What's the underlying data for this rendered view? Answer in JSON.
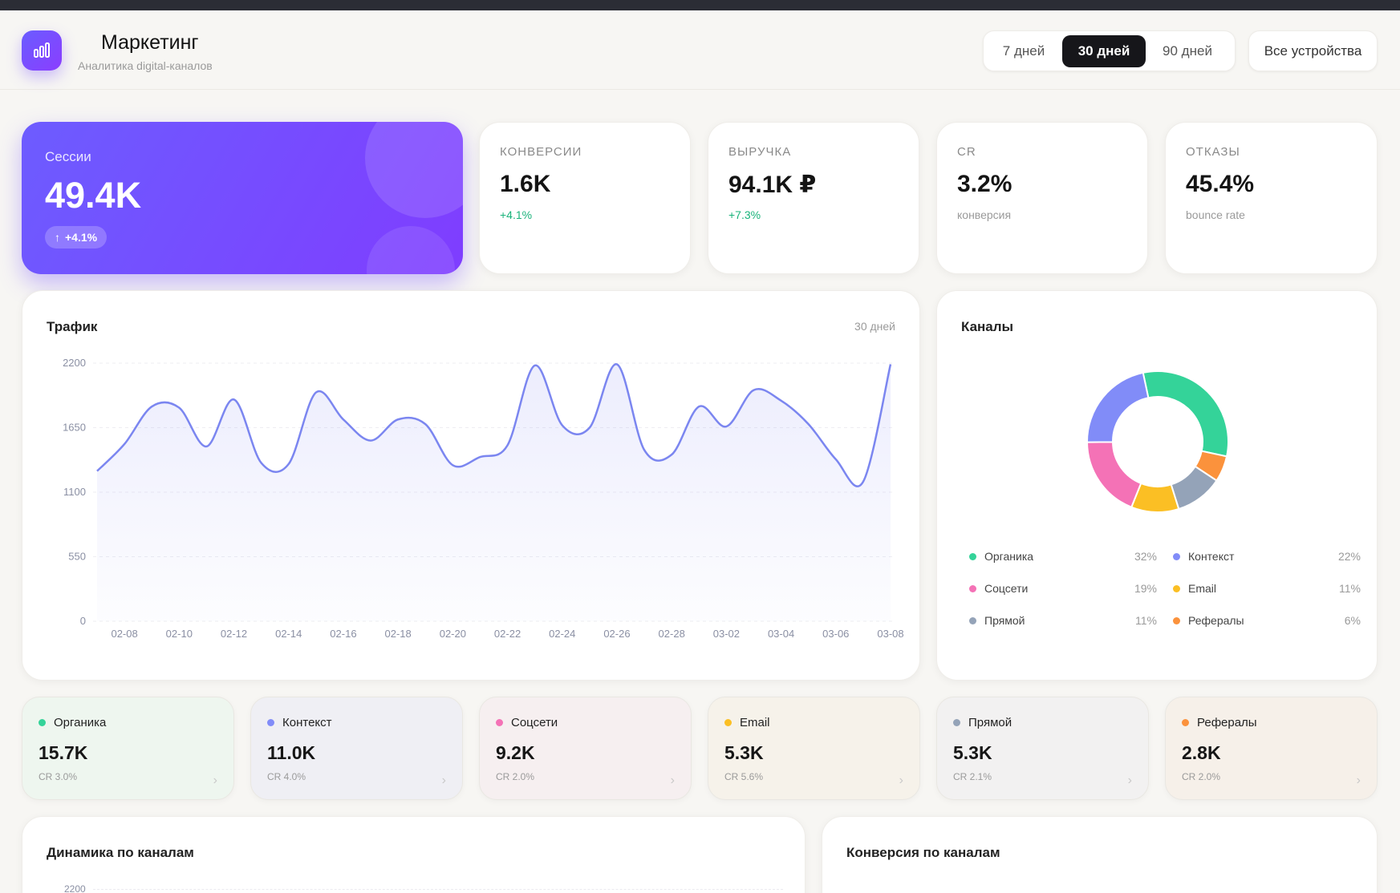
{
  "app": {
    "title": "Маркетинг",
    "subtitle": "Аналитика digital-каналов"
  },
  "periods": [
    {
      "label": "7 дней",
      "active": false
    },
    {
      "label": "30 дней",
      "active": true
    },
    {
      "label": "90 дней",
      "active": false
    }
  ],
  "device_filter": "Все устройства",
  "hero": {
    "label": "Сессии",
    "value": "49.4K",
    "delta": "+4.1%",
    "delta_icon": "arrow-up-icon"
  },
  "kpis": [
    {
      "label": "Конверсии",
      "value": "1.6K",
      "sub": "+4.1%",
      "positive": true
    },
    {
      "label": "Выручка",
      "value": "94.1K ₽",
      "sub": "+7.3%",
      "positive": true
    },
    {
      "label": "CR",
      "value": "3.2%",
      "sub": "конверсия",
      "positive": false
    },
    {
      "label": "Отказы",
      "value": "45.4%",
      "sub": "bounce rate",
      "positive": false
    }
  ],
  "traffic": {
    "title": "Трафик",
    "period": "30 дней",
    "color": "#7b86f0"
  },
  "channels_panel": {
    "title": "Каналы"
  },
  "legend": [
    {
      "name": "Органика",
      "pct": "32%",
      "color": "#34d399"
    },
    {
      "name": "Контекст",
      "pct": "22%",
      "color": "#818cf8"
    },
    {
      "name": "Соцсети",
      "pct": "19%",
      "color": "#f472b6"
    },
    {
      "name": "Email",
      "pct": "11%",
      "color": "#fbbf24"
    },
    {
      "name": "Прямой",
      "pct": "11%",
      "color": "#94a3b8"
    },
    {
      "name": "Рефералы",
      "pct": "6%",
      "color": "#fb923c"
    }
  ],
  "channel_cards": [
    {
      "name": "Органика",
      "value": "15.7K",
      "cr": "CR 3.0%",
      "color": "#34d399",
      "bg": "#eef6ef"
    },
    {
      "name": "Контекст",
      "value": "11.0K",
      "cr": "CR 4.0%",
      "color": "#818cf8",
      "bg": "#efeff4"
    },
    {
      "name": "Соцсети",
      "value": "9.2K",
      "cr": "CR 2.0%",
      "color": "#f472b6",
      "bg": "#f6eff0"
    },
    {
      "name": "Email",
      "value": "5.3K",
      "cr": "CR 5.6%",
      "color": "#fbbf24",
      "bg": "#f6f2ea"
    },
    {
      "name": "Прямой",
      "value": "5.3K",
      "cr": "CR 2.1%",
      "color": "#94a3b8",
      "bg": "#f2f1f1"
    },
    {
      "name": "Рефералы",
      "value": "2.8K",
      "cr": "CR 2.0%",
      "color": "#fb923c",
      "bg": "#f6f0e9"
    }
  ],
  "bottom": {
    "dynamics_title": "Динамика по каналам",
    "dynamics_tick": "2200",
    "conversion_title": "Конверсия по каналам"
  },
  "chart_data": [
    {
      "type": "area",
      "title": "Трафик",
      "xlabel": "",
      "ylabel": "",
      "ylim": [
        0,
        2200
      ],
      "yticks": [
        0,
        550,
        1100,
        1650,
        2200
      ],
      "xticks": [
        "02-08",
        "02-10",
        "02-12",
        "02-14",
        "02-16",
        "02-18",
        "02-20",
        "02-22",
        "02-24",
        "02-26",
        "02-28",
        "03-02",
        "03-04",
        "03-06",
        "03-08"
      ],
      "x": [
        "02-07",
        "02-08",
        "02-09",
        "02-10",
        "02-11",
        "02-12",
        "02-13",
        "02-14",
        "02-15",
        "02-16",
        "02-17",
        "02-18",
        "02-19",
        "02-20",
        "02-21",
        "02-22",
        "02-23",
        "02-24",
        "02-25",
        "02-26",
        "02-27",
        "02-28",
        "03-01",
        "03-02",
        "03-03",
        "03-04",
        "03-05",
        "03-06",
        "03-07",
        "03-08"
      ],
      "values": [
        1280,
        1510,
        1830,
        1820,
        1490,
        1890,
        1350,
        1340,
        1950,
        1720,
        1540,
        1720,
        1680,
        1330,
        1400,
        1500,
        2180,
        1670,
        1650,
        2190,
        1460,
        1420,
        1830,
        1660,
        1970,
        1880,
        1680,
        1380,
        1190,
        2190
      ],
      "grid": true
    },
    {
      "type": "pie",
      "title": "Каналы",
      "categories": [
        "Органика",
        "Контекст",
        "Соцсети",
        "Email",
        "Прямой",
        "Рефералы"
      ],
      "values": [
        32,
        22,
        19,
        11,
        11,
        6
      ],
      "order_clockwise_from_top": [
        "Органика",
        "Рефералы",
        "Прямой",
        "Email",
        "Соцсети",
        "Контекст"
      ]
    }
  ]
}
